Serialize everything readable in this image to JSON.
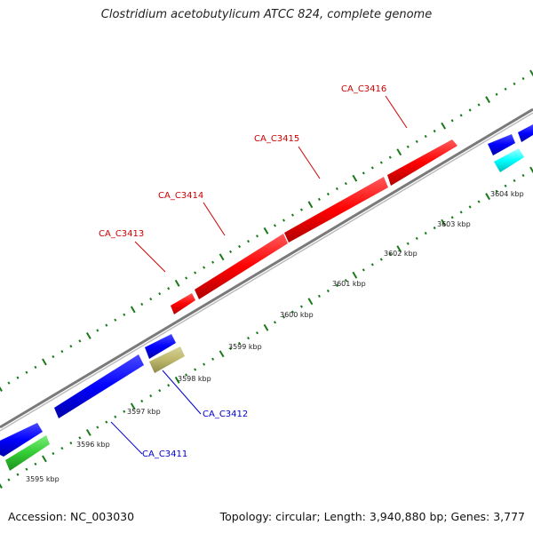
{
  "title": "Clostridium acetobutylicum ATCC 824, complete genome",
  "footer": {
    "accession": "Accession: NC_003030",
    "summary": "Topology: circular; Length: 3,940,880 bp; Genes: 3,777"
  },
  "kbp_ticks": [
    "3595 kbp",
    "3596 kbp",
    "3597 kbp",
    "3598 kbp",
    "3599 kbp",
    "3600 kbp",
    "3601 kbp",
    "3602 kbp",
    "3603 kbp",
    "3604 kbp"
  ],
  "genes_top": [
    "CA_C3413",
    "CA_C3414",
    "CA_C3415",
    "CA_C3416"
  ],
  "genes_bottom": [
    "CA_C3411",
    "CA_C3412"
  ],
  "colors": {
    "forward_highlight": "#ff0000",
    "forward_gene": "#0000ff",
    "reverse_green": "#33cc33",
    "reverse_khaki": "#bdb76b",
    "reverse_cyan": "#00ffff",
    "backbone": "#888888",
    "tick": "#1a7a1a",
    "label_top": "#cc0000",
    "label_bottom": "#0000cc"
  }
}
